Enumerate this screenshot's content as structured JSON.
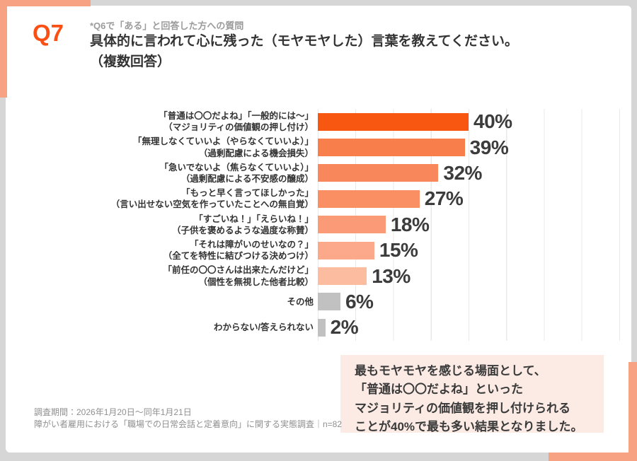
{
  "header": {
    "q_label": "Q7",
    "note": "*Q6で「ある」と回答した方への質問",
    "title_line1": "具体的に言われて心に残った（モヤモヤした）言葉を教えてください。",
    "title_line2": "（複数回答）"
  },
  "chart_data": {
    "type": "bar",
    "orientation": "horizontal",
    "unit": "%",
    "xlim": [
      0,
      80
    ],
    "gridline_interval": 10,
    "grid": true,
    "items": [
      {
        "label": "「普通は〇〇だよね」「一般的には～」",
        "sub": "（マジョリティの価値観の押し付け）",
        "value": 40,
        "color": "#F75711"
      },
      {
        "label": "「無理しなくていいよ（やらなくていいよ）」",
        "sub": "（過剰配慮による機会損失）",
        "value": 39,
        "color": "#F87E4B"
      },
      {
        "label": "「急いでないよ（焦らなくていいよ）」",
        "sub": "（過剰配慮による不安感の醸成）",
        "value": 32,
        "color": "#F9875C"
      },
      {
        "label": "「もっと早く言ってほしかった」",
        "sub": "（言い出せない空気を作っていたことへの無自覚）",
        "value": 27,
        "color": "#F98F63"
      },
      {
        "label": "「すごいね！」「えらいね！」",
        "sub": "（子供を褒めるような過度な称賛）",
        "value": 18,
        "color": "#FA9A76"
      },
      {
        "label": "「それは障がいのせいなの？」",
        "sub": "（全てを特性に結びつける決めつけ）",
        "value": 15,
        "color": "#FBA98A"
      },
      {
        "label": "「前任の〇〇さんは出来たんだけど」",
        "sub": "（個性を無視した他者比較）",
        "value": 13,
        "color": "#FCBC9F"
      },
      {
        "label": "その他",
        "sub": "",
        "value": 6,
        "color": "#C1C1C1"
      },
      {
        "label": "わからない/答えられない",
        "sub": "",
        "value": 2,
        "color": "#C1C1C1"
      }
    ]
  },
  "summary_box": {
    "lines": [
      "最もモヤモヤを感じる場面として、",
      "「普通は〇〇だよね」といった",
      "マジョリティの価値観を押し付けられる",
      "ことが40%で最も多い結果となりました。"
    ]
  },
  "footer": {
    "line1": "調査期間：2026年1月20日～同年1月21日",
    "line2": "障がい者雇用における「職場での日常会話と定着意向」に関する実態調査｜n=82"
  },
  "colors": {
    "accent_salmon": "#F8A284",
    "q_label_orange": "#FB4F14",
    "summary_bg": "#FCEBE5",
    "outer_background": "#D6D6D6",
    "bar_gray": "#C1C1C1",
    "text_dark": "#333333"
  }
}
